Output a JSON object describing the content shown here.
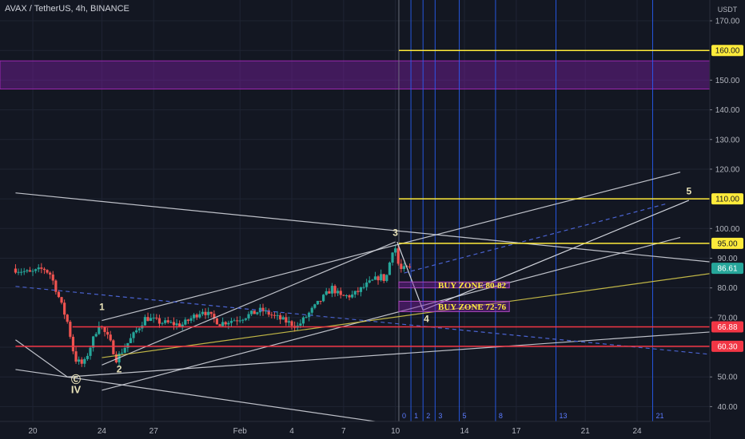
{
  "header": {
    "symbol_line": "AVAX / TetherUS, 4h, BINANCE"
  },
  "chart_data": {
    "type": "candlestick",
    "title": "AVAX / TetherUS, 4h, BINANCE",
    "currency_label": "USDT",
    "y_axis": {
      "ticks": [
        170,
        160,
        150,
        140,
        130,
        120,
        110,
        100,
        90,
        80,
        70,
        60,
        50,
        40
      ],
      "tick_labels": [
        "170.00",
        "150.00",
        "140.00",
        "130.00",
        "120.00",
        "100.00",
        "90.00",
        "80.00",
        "70.00",
        "50.00",
        "40.00"
      ],
      "range": [
        35,
        177
      ]
    },
    "x_axis": {
      "tick_labels": [
        "20",
        "24",
        "27",
        "Feb",
        "4",
        "7",
        "10",
        "14",
        "17",
        "21",
        "24"
      ],
      "tick_days": [
        0,
        4,
        7,
        12,
        15,
        18,
        21,
        25,
        28,
        32,
        35
      ]
    },
    "price_badges": [
      {
        "value": 160.0,
        "label": "160.00",
        "color": "#ffeb3b",
        "text_color": "#131722"
      },
      {
        "value": 110.0,
        "label": "110.00",
        "color": "#ffeb3b",
        "text_color": "#131722"
      },
      {
        "value": 95.0,
        "label": "95.00",
        "color": "#ffeb3b",
        "text_color": "#131722"
      },
      {
        "value": 86.61,
        "label": "86.61",
        "color": "#26a69a",
        "text_color": "#ffffff"
      },
      {
        "value": 66.88,
        "label": "66.88",
        "color": "#f23645",
        "text_color": "#ffffff"
      },
      {
        "value": 60.3,
        "label": "60.30",
        "color": "#f23645",
        "text_color": "#ffffff"
      }
    ],
    "resistance_zone": {
      "from": 147,
      "to": 156.5,
      "color": "#7b1fa2"
    },
    "horizontal_lines": [
      {
        "value": 160.0,
        "from_day": 21.2,
        "color": "#ffeb3b"
      },
      {
        "value": 110.0,
        "from_day": 21.2,
        "color": "#ffeb3b"
      },
      {
        "value": 95.0,
        "from_day": 21.2,
        "color": "#ffeb3b"
      },
      {
        "value": 66.88,
        "from_day": 2.3,
        "color": "#f23645"
      },
      {
        "value": 60.3,
        "from_day": -1,
        "color": "#f23645"
      }
    ],
    "buy_zones": [
      {
        "label": "BUY ZONE 80-82",
        "low": 80,
        "high": 82,
        "from_day": 21.2,
        "to_day": 27.6
      },
      {
        "label": "BUY ZONE 72-76",
        "low": 72,
        "high": 75.5,
        "from_day": 21.2,
        "to_day": 27.6
      }
    ],
    "fib_time_zones": {
      "labels": [
        "0",
        "1",
        "2",
        "3",
        "5",
        "8",
        "13",
        "21"
      ],
      "days": [
        21.2,
        21.9,
        22.6,
        23.3,
        24.7,
        26.8,
        30.3,
        35.9
      ]
    },
    "wave_labels": [
      {
        "text": "1",
        "day": 4.0,
        "price": 72.5
      },
      {
        "text": "2",
        "day": 5.0,
        "price": 51.5
      },
      {
        "text": "3",
        "day": 21.0,
        "price": 97.5
      },
      {
        "text": "4",
        "day": 22.8,
        "price": 68.5
      },
      {
        "text": "5",
        "day": 38.0,
        "price": 111.5
      },
      {
        "text": "Ⓒ",
        "day": 2.5,
        "price": 48.0
      },
      {
        "text": "IV",
        "day": 2.5,
        "price": 44.5
      }
    ],
    "wave_path": [
      {
        "day": 21.1,
        "price": 95.5
      },
      {
        "day": 22.6,
        "price": 72.5
      },
      {
        "day": 38.0,
        "price": 109.5
      }
    ],
    "forecast_dashed": {
      "from": {
        "day": 21.5,
        "price": 85
      },
      "to": {
        "day": 36.8,
        "price": 108.5
      },
      "color": "#4a63d0"
    },
    "lower_dashed": {
      "from": {
        "day": -1,
        "price": 80.5
      },
      "to": {
        "day": 43.8,
        "price": 55
      },
      "color": "#4a63d0"
    },
    "trend_lines": [
      {
        "from": {
          "day": -1,
          "price": 112
        },
        "to": {
          "day": 44,
          "price": 86
        },
        "color": "#d1d4dc"
      },
      {
        "from": {
          "day": -1,
          "price": 62.5
        },
        "to": {
          "day": 2.0,
          "price": 50
        },
        "color": "#d1d4dc"
      },
      {
        "from": {
          "day": -1,
          "price": 52.5
        },
        "to": {
          "day": 21.0,
          "price": 34
        },
        "color": "#d1d4dc"
      },
      {
        "from": {
          "day": 2.0,
          "price": 50
        },
        "to": {
          "day": 43.8,
          "price": 67
        },
        "color": "#d1d4dc"
      },
      {
        "from": {
          "day": 4.0,
          "price": 54
        },
        "to": {
          "day": 21.0,
          "price": 95.5
        },
        "color": "#d1d4dc"
      },
      {
        "from": {
          "day": 4.0,
          "price": 69
        },
        "to": {
          "day": 37.5,
          "price": 119
        },
        "color": "#d1d4dc"
      },
      {
        "from": {
          "day": 4.0,
          "price": 45.5
        },
        "to": {
          "day": 37.5,
          "price": 97
        },
        "color": "#d1d4dc"
      },
      {
        "from": {
          "day": 4.0,
          "price": 56.5
        },
        "to": {
          "day": 43.8,
          "price": 88.5
        },
        "color": "#d4c84a"
      }
    ],
    "candle_path_anchors": [
      {
        "day": -1.0,
        "price": 86.5
      },
      {
        "day": 0.0,
        "price": 85.0
      },
      {
        "day": 0.8,
        "price": 86.5
      },
      {
        "day": 1.2,
        "price": 84.5
      },
      {
        "day": 1.6,
        "price": 78.0
      },
      {
        "day": 2.2,
        "price": 68.0
      },
      {
        "day": 2.6,
        "price": 56.0
      },
      {
        "day": 3.1,
        "price": 54.0
      },
      {
        "day": 4.0,
        "price": 68.0
      },
      {
        "day": 4.6,
        "price": 62.5
      },
      {
        "day": 5.0,
        "price": 56.0
      },
      {
        "day": 5.8,
        "price": 62.5
      },
      {
        "day": 6.7,
        "price": 70.0
      },
      {
        "day": 7.5,
        "price": 68.5
      },
      {
        "day": 8.8,
        "price": 67.5
      },
      {
        "day": 10.0,
        "price": 72.5
      },
      {
        "day": 11.0,
        "price": 68.0
      },
      {
        "day": 12.3,
        "price": 70.0
      },
      {
        "day": 13.4,
        "price": 72.5
      },
      {
        "day": 14.5,
        "price": 69.5
      },
      {
        "day": 15.5,
        "price": 67.0
      },
      {
        "day": 16.4,
        "price": 73.0
      },
      {
        "day": 17.5,
        "price": 80.0
      },
      {
        "day": 18.0,
        "price": 77.0
      },
      {
        "day": 18.7,
        "price": 77.5
      },
      {
        "day": 19.5,
        "price": 81.0
      },
      {
        "day": 20.3,
        "price": 84.0
      },
      {
        "day": 20.6,
        "price": 82.5
      },
      {
        "day": 21.1,
        "price": 95.5
      },
      {
        "day": 21.4,
        "price": 86.0
      },
      {
        "day": 21.9,
        "price": 86.6
      }
    ],
    "colors": {
      "up": "#26a69a",
      "down": "#ef5350",
      "background": "#131722",
      "text": "#d1d4dc"
    },
    "grid": true
  }
}
